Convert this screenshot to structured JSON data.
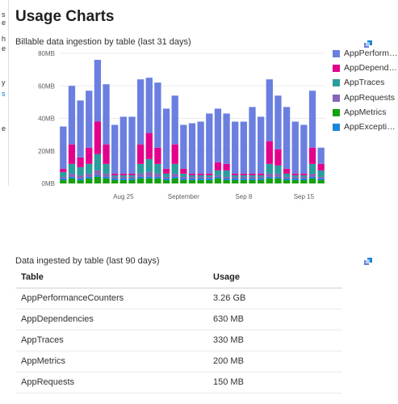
{
  "page": {
    "title": "Usage Charts"
  },
  "left_strip": {
    "fragments": [
      "s",
      "e",
      "h",
      "e",
      "",
      "y",
      "s",
      "",
      "e"
    ]
  },
  "chart": {
    "title": "Billable data ingestion by table (last 31 days)",
    "pin_icon": "pin-icon"
  },
  "chart_data": {
    "type": "bar",
    "stacked": true,
    "ylim": [
      0,
      80
    ],
    "y_unit": "MB",
    "y_ticks": [
      "80MB",
      "60MB",
      "40MB",
      "20MB",
      "0MB"
    ],
    "x_tick_labels": [
      {
        "label": "Aug 25",
        "index": 7
      },
      {
        "label": "September",
        "index": 14
      },
      {
        "label": "Sep 8",
        "index": 21
      },
      {
        "label": "Sep 15",
        "index": 28
      }
    ],
    "grid": true,
    "legend_position": "right",
    "series": [
      {
        "name": "AppMetrics",
        "color": "#13a10e",
        "values": [
          2,
          3,
          2,
          3,
          4,
          3,
          2,
          2,
          2,
          3,
          3,
          3,
          2,
          3,
          2,
          2,
          2,
          2,
          3,
          2,
          2,
          2,
          2,
          2,
          3,
          3,
          2,
          2,
          2,
          3,
          2
        ]
      },
      {
        "name": "AppExceptions",
        "color": "#1a86d8",
        "values": [
          1,
          1,
          1,
          1,
          1,
          1,
          1,
          1,
          1,
          1,
          1,
          1,
          1,
          1,
          1,
          1,
          1,
          1,
          1,
          1,
          1,
          1,
          1,
          1,
          1,
          1,
          1,
          1,
          1,
          1,
          1
        ]
      },
      {
        "name": "AppRequests",
        "color": "#8764b8",
        "values": [
          1,
          2,
          2,
          2,
          3,
          2,
          1,
          1,
          1,
          2,
          3,
          2,
          1,
          2,
          1,
          1,
          1,
          1,
          1,
          1,
          1,
          1,
          1,
          1,
          2,
          2,
          1,
          1,
          1,
          2,
          1
        ]
      },
      {
        "name": "AppTraces",
        "color": "#2a9d9d",
        "values": [
          3,
          6,
          5,
          6,
          10,
          6,
          1,
          1,
          1,
          6,
          8,
          6,
          2,
          6,
          2,
          1,
          1,
          1,
          3,
          4,
          1,
          1,
          1,
          1,
          6,
          5,
          2,
          1,
          1,
          6,
          4
        ]
      },
      {
        "name": "AppDependencies",
        "color": "#e3008c",
        "values": [
          2,
          12,
          6,
          10,
          20,
          12,
          1,
          1,
          1,
          12,
          16,
          10,
          3,
          12,
          3,
          1,
          1,
          1,
          5,
          4,
          1,
          1,
          1,
          1,
          14,
          10,
          3,
          1,
          1,
          10,
          4
        ]
      },
      {
        "name": "AppPerformanceCounters",
        "color": "#6b7fe0",
        "values": [
          26,
          36,
          35,
          35,
          38,
          37,
          30,
          35,
          35,
          40,
          34,
          40,
          37,
          30,
          27,
          31,
          32,
          37,
          33,
          31,
          32,
          32,
          41,
          35,
          38,
          33,
          38,
          32,
          30,
          35,
          10
        ]
      }
    ]
  },
  "legend": {
    "items": [
      {
        "label": "AppPerformanceCounters",
        "color": "#6b7fe0"
      },
      {
        "label": "AppDependencies",
        "color": "#e3008c"
      },
      {
        "label": "AppTraces",
        "color": "#2a9d9d"
      },
      {
        "label": "AppRequests",
        "color": "#8764b8"
      },
      {
        "label": "AppMetrics",
        "color": "#13a10e"
      },
      {
        "label": "AppExceptions",
        "color": "#1a86d8"
      }
    ]
  },
  "table": {
    "title": "Data ingested by table (last 90 days)",
    "pin_icon": "pin-icon",
    "headers": {
      "table": "Table",
      "usage": "Usage"
    },
    "rows": [
      {
        "table": "AppPerformanceCounters",
        "usage": "3.26 GB"
      },
      {
        "table": "AppDependencies",
        "usage": "630 MB"
      },
      {
        "table": "AppTraces",
        "usage": "330 MB"
      },
      {
        "table": "AppMetrics",
        "usage": "200 MB"
      },
      {
        "table": "AppRequests",
        "usage": "150 MB"
      }
    ]
  }
}
